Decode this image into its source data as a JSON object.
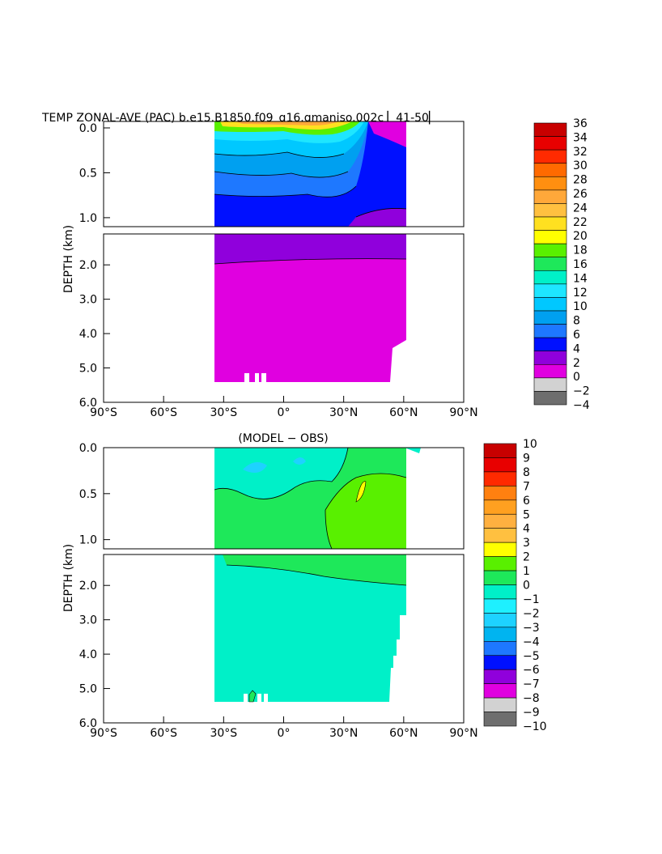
{
  "chart_data": [
    {
      "type": "heatmap",
      "title": "TEMP ZONAL-AVE (PAC) b.e15.B1850.f09_g16.gmaniso.002c ▏41-50▏",
      "xlabel": "",
      "ylabel": "DEPTH (km)",
      "x_ticks": [
        "90°S",
        "60°S",
        "30°S",
        "0°",
        "30°N",
        "60°N",
        "90°N"
      ],
      "xlim": [
        -90,
        90
      ],
      "y_ticks_upper": [
        "0.0",
        "0.5",
        "1.0"
      ],
      "y_ticks_lower": [
        "2.0",
        "3.0",
        "4.0",
        "5.0",
        "6.0"
      ],
      "ylim_upper_km": [
        0,
        1.1
      ],
      "ylim_lower_km": [
        1.1,
        6.0
      ],
      "data_extent_lat": [
        -33,
        62
      ],
      "colorbar": {
        "labels": [
          "36",
          "34",
          "32",
          "30",
          "28",
          "26",
          "24",
          "22",
          "20",
          "18",
          "16",
          "14",
          "12",
          "10",
          "8",
          "6",
          "4",
          "2",
          "0",
          "−2",
          "−4"
        ],
        "colors": [
          "#c80000",
          "#e80000",
          "#ff2a00",
          "#ff6a00",
          "#ff8f10",
          "#ffa83a",
          "#ffc040",
          "#ffe020",
          "#ffff00",
          "#59f000",
          "#1ee85a",
          "#00f0c8",
          "#1ee6ff",
          "#00c8ff",
          "#00a0f0",
          "#1e78ff",
          "#0010ff",
          "#9000dc",
          "#e000e0",
          "#d2d2d2",
          "#6e6e6e"
        ]
      }
    },
    {
      "type": "heatmap",
      "title": "(MODEL − OBS)",
      "xlabel": "",
      "ylabel": "DEPTH (km)",
      "x_ticks": [
        "90°S",
        "60°S",
        "30°S",
        "0°",
        "30°N",
        "60°N",
        "90°N"
      ],
      "xlim": [
        -90,
        90
      ],
      "y_ticks_upper": [
        "0.0",
        "0.5",
        "1.0"
      ],
      "y_ticks_lower": [
        "2.0",
        "3.0",
        "4.0",
        "5.0",
        "6.0"
      ],
      "ylim_upper_km": [
        0,
        1.1
      ],
      "ylim_lower_km": [
        1.1,
        6.0
      ],
      "colorbar": {
        "labels": [
          "10",
          "9",
          "8",
          "7",
          "6",
          "5",
          "4",
          "3",
          "2",
          "1",
          "0",
          "−1",
          "−2",
          "−3",
          "−4",
          "−5",
          "−6",
          "−7",
          "−8",
          "−9",
          "−10"
        ],
        "colors": [
          "#c80000",
          "#e80000",
          "#ff2a00",
          "#ff8010",
          "#ffa020",
          "#ffb040",
          "#ffc040",
          "#ffff00",
          "#59f000",
          "#1ee85a",
          "#00f0c8",
          "#1ef0ff",
          "#1ed2ff",
          "#00b4f0",
          "#1e78ff",
          "#0010ff",
          "#9000dc",
          "#e000e0",
          "#d2d2d2",
          "#6e6e6e"
        ]
      }
    }
  ]
}
